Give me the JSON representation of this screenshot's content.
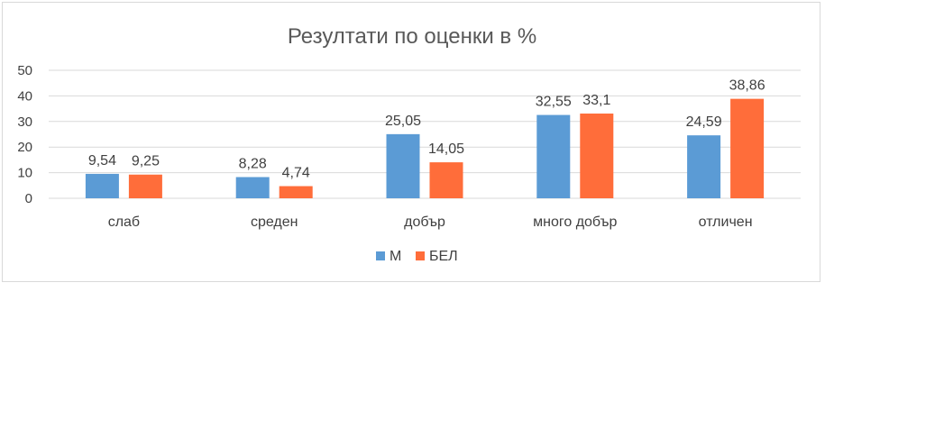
{
  "chart_data": {
    "type": "bar",
    "title": "Резултати по оценки в %",
    "categories": [
      "слаб",
      "среден",
      "добър",
      "много добър",
      "отличен"
    ],
    "series": [
      {
        "name": "М",
        "values": [
          9.54,
          8.28,
          25.05,
          32.55,
          24.59
        ],
        "labels": [
          "9,54",
          "8,28",
          "25,05",
          "32,55",
          "24,59"
        ],
        "color": "#5b9bd5"
      },
      {
        "name": "БЕЛ",
        "values": [
          9.25,
          4.74,
          14.05,
          33.1,
          38.86
        ],
        "labels": [
          "9,25",
          "4,74",
          "14,05",
          "33,1",
          "38,86"
        ],
        "color": "#ff6d3a"
      }
    ],
    "yticks": [
      "0",
      "10",
      "20",
      "30",
      "40",
      "50"
    ],
    "ylim": [
      0,
      50
    ],
    "grid": true,
    "legend_position": "bottom",
    "gridline_color": "#d9d9d9"
  }
}
